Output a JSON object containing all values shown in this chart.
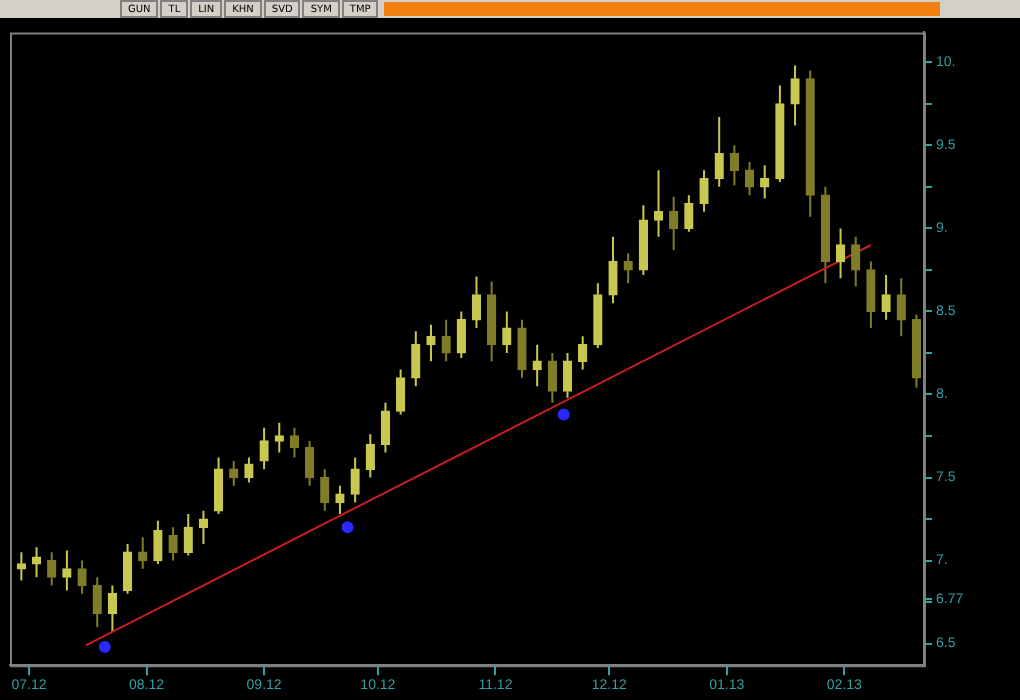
{
  "chart_data": {
    "type": "candlestick",
    "grid": false,
    "legend": false,
    "colors": [
      "#c8c850",
      "#c8c850",
      "#807c28",
      "#c8c850",
      "#807c28",
      "#807c28",
      "#c8c850",
      "#c8c850",
      "#807c28",
      "#c8c850",
      "#807c28",
      "#c8c850",
      "#c8c850",
      "#c8c850",
      "#807c28",
      "#c8c850",
      "#c8c850",
      "#c8c850",
      "#807c28",
      "#807c28",
      "#807c28",
      "#c8c850",
      "#c8c850",
      "#c8c850",
      "#c8c850",
      "#c8c850",
      "#c8c850",
      "#c8c850",
      "#807c28",
      "#c8c850",
      "#c8c850",
      "#807c28",
      "#c8c850",
      "#807c28",
      "#c8c850",
      "#807c28",
      "#c8c850",
      "#c8c850",
      "#c8c850",
      "#c8c850",
      "#807c28",
      "#c8c850",
      "#c8c850",
      "#807c28",
      "#c8c850",
      "#c8c850",
      "#c8c850",
      "#807c28",
      "#807c28",
      "#c8c850",
      "#c8c850",
      "#c8c850",
      "#807c28",
      "#807c28",
      "#c8c850",
      "#807c28",
      "#807c28",
      "#c8c850",
      "#807c28",
      "#807c28"
    ],
    "annotations": [
      "GUN",
      "TL",
      "LIN",
      "KHN",
      "SVD",
      "SYM",
      "TMP"
    ],
    "x": [
      "2012-06-29",
      "2012-07-03",
      "2012-07-07",
      "2012-07-11",
      "2012-07-15",
      "2012-07-19",
      "2012-07-23",
      "2012-07-27",
      "2012-07-31",
      "2012-08-04",
      "2012-08-08",
      "2012-08-12",
      "2012-08-16",
      "2012-08-20",
      "2012-08-24",
      "2012-08-28",
      "2012-09-01",
      "2012-09-05",
      "2012-09-09",
      "2012-09-13",
      "2012-09-17",
      "2012-09-21",
      "2012-09-25",
      "2012-09-29",
      "2012-10-03",
      "2012-10-07",
      "2012-10-11",
      "2012-10-15",
      "2012-10-19",
      "2012-10-23",
      "2012-10-27",
      "2012-10-31",
      "2012-11-04",
      "2012-11-08",
      "2012-11-12",
      "2012-11-16",
      "2012-11-20",
      "2012-11-24",
      "2012-11-28",
      "2012-12-02",
      "2012-12-06",
      "2012-12-10",
      "2012-12-14",
      "2012-12-18",
      "2012-12-22",
      "2012-12-26",
      "2012-12-30",
      "2013-01-03",
      "2013-01-07",
      "2013-01-11",
      "2013-01-15",
      "2013-01-19",
      "2013-01-23",
      "2013-01-27",
      "2013-01-31",
      "2013-02-04",
      "2013-02-08",
      "2013-02-12",
      "2013-02-16",
      "2013-02-20"
    ],
    "ohlc": [
      [
        6.95,
        7.05,
        6.88,
        6.98
      ],
      [
        6.98,
        7.08,
        6.9,
        7.02
      ],
      [
        7.0,
        7.05,
        6.85,
        6.9
      ],
      [
        6.9,
        7.06,
        6.82,
        6.95
      ],
      [
        6.95,
        7.0,
        6.8,
        6.85
      ],
      [
        6.85,
        6.9,
        6.6,
        6.68
      ],
      [
        6.68,
        6.85,
        6.57,
        6.8
      ],
      [
        6.82,
        7.1,
        6.8,
        7.05
      ],
      [
        7.05,
        7.14,
        6.95,
        7.0
      ],
      [
        7.0,
        7.24,
        6.98,
        7.18
      ],
      [
        7.15,
        7.2,
        7.0,
        7.05
      ],
      [
        7.05,
        7.28,
        7.03,
        7.2
      ],
      [
        7.2,
        7.3,
        7.1,
        7.25
      ],
      [
        7.3,
        7.62,
        7.28,
        7.55
      ],
      [
        7.55,
        7.6,
        7.45,
        7.5
      ],
      [
        7.5,
        7.62,
        7.47,
        7.58
      ],
      [
        7.6,
        7.8,
        7.55,
        7.72
      ],
      [
        7.72,
        7.83,
        7.65,
        7.75
      ],
      [
        7.75,
        7.8,
        7.62,
        7.68
      ],
      [
        7.68,
        7.72,
        7.45,
        7.5
      ],
      [
        7.5,
        7.55,
        7.3,
        7.35
      ],
      [
        7.35,
        7.45,
        7.28,
        7.4
      ],
      [
        7.4,
        7.62,
        7.35,
        7.55
      ],
      [
        7.55,
        7.76,
        7.5,
        7.7
      ],
      [
        7.7,
        7.95,
        7.65,
        7.9
      ],
      [
        7.9,
        8.15,
        7.88,
        8.1
      ],
      [
        8.1,
        8.38,
        8.05,
        8.3
      ],
      [
        8.3,
        8.42,
        8.2,
        8.35
      ],
      [
        8.35,
        8.45,
        8.2,
        8.25
      ],
      [
        8.25,
        8.5,
        8.22,
        8.45
      ],
      [
        8.45,
        8.71,
        8.4,
        8.6
      ],
      [
        8.6,
        8.68,
        8.2,
        8.3
      ],
      [
        8.3,
        8.5,
        8.25,
        8.4
      ],
      [
        8.4,
        8.45,
        8.1,
        8.15
      ],
      [
        8.15,
        8.3,
        8.05,
        8.2
      ],
      [
        8.2,
        8.25,
        7.95,
        8.02
      ],
      [
        8.02,
        8.25,
        7.98,
        8.2
      ],
      [
        8.2,
        8.35,
        8.15,
        8.3
      ],
      [
        8.3,
        8.67,
        8.28,
        8.6
      ],
      [
        8.6,
        8.95,
        8.55,
        8.8
      ],
      [
        8.8,
        8.85,
        8.67,
        8.75
      ],
      [
        8.75,
        9.14,
        8.72,
        9.05
      ],
      [
        9.05,
        9.35,
        8.95,
        9.1
      ],
      [
        9.1,
        9.19,
        8.87,
        9.0
      ],
      [
        9.0,
        9.2,
        8.98,
        9.15
      ],
      [
        9.15,
        9.35,
        9.1,
        9.3
      ],
      [
        9.3,
        9.67,
        9.25,
        9.45
      ],
      [
        9.45,
        9.5,
        9.26,
        9.35
      ],
      [
        9.35,
        9.4,
        9.2,
        9.25
      ],
      [
        9.25,
        9.38,
        9.18,
        9.3
      ],
      [
        9.3,
        9.86,
        9.28,
        9.75
      ],
      [
        9.75,
        9.98,
        9.62,
        9.9
      ],
      [
        9.9,
        9.95,
        9.07,
        9.2
      ],
      [
        9.2,
        9.25,
        8.67,
        8.8
      ],
      [
        8.8,
        9.0,
        8.7,
        8.9
      ],
      [
        8.9,
        8.95,
        8.65,
        8.75
      ],
      [
        8.75,
        8.8,
        8.4,
        8.5
      ],
      [
        8.5,
        8.72,
        8.45,
        8.6
      ],
      [
        8.6,
        8.7,
        8.35,
        8.45
      ],
      [
        8.45,
        8.48,
        8.04,
        8.1
      ]
    ],
    "series": [
      {
        "type": "line",
        "color": "#c81e1e",
        "x": [
          "2012-07-16",
          "2013-02-08"
        ],
        "values": [
          6.49,
          8.9
        ]
      },
      {
        "type": "scatter",
        "color": "#2828ff",
        "marker": "circle",
        "x": [
          "2012-07-21",
          "2012-09-23",
          "2012-11-19"
        ],
        "values": [
          6.48,
          7.2,
          7.88
        ]
      }
    ],
    "xlim": [
      "2012-06-26",
      "2013-02-22"
    ],
    "xticks": [
      {
        "value": "2012-07-01",
        "label": "07.12"
      },
      {
        "value": "2012-08-01",
        "label": "08.12"
      },
      {
        "value": "2012-09-01",
        "label": "09.12"
      },
      {
        "value": "2012-10-01",
        "label": "10.12"
      },
      {
        "value": "2012-11-01",
        "label": "11.12"
      },
      {
        "value": "2012-12-01",
        "label": "12.12"
      },
      {
        "value": "2013-01-01",
        "label": "01.13"
      },
      {
        "value": "2013-02-01",
        "label": "02.13"
      }
    ],
    "ylim": [
      6.37,
      10.18
    ],
    "yticks": [
      {
        "value": 6.5,
        "label": "6.5"
      },
      {
        "value": 6.75,
        "label": null
      },
      {
        "value": 6.77,
        "label": "6.77"
      },
      {
        "value": 7,
        "label": "7."
      },
      {
        "value": 7.25,
        "label": null
      },
      {
        "value": 7.5,
        "label": "7.5"
      },
      {
        "value": 7.75,
        "label": null
      },
      {
        "value": 8,
        "label": "8."
      },
      {
        "value": 8.25,
        "label": null
      },
      {
        "value": 8.5,
        "label": "8.5"
      },
      {
        "value": 8.75,
        "label": null
      },
      {
        "value": 9,
        "label": "9."
      },
      {
        "value": 9.25,
        "label": null
      },
      {
        "value": 9.5,
        "label": "9.5"
      },
      {
        "value": 9.75,
        "label": null
      },
      {
        "value": 10,
        "label": "10."
      }
    ]
  }
}
